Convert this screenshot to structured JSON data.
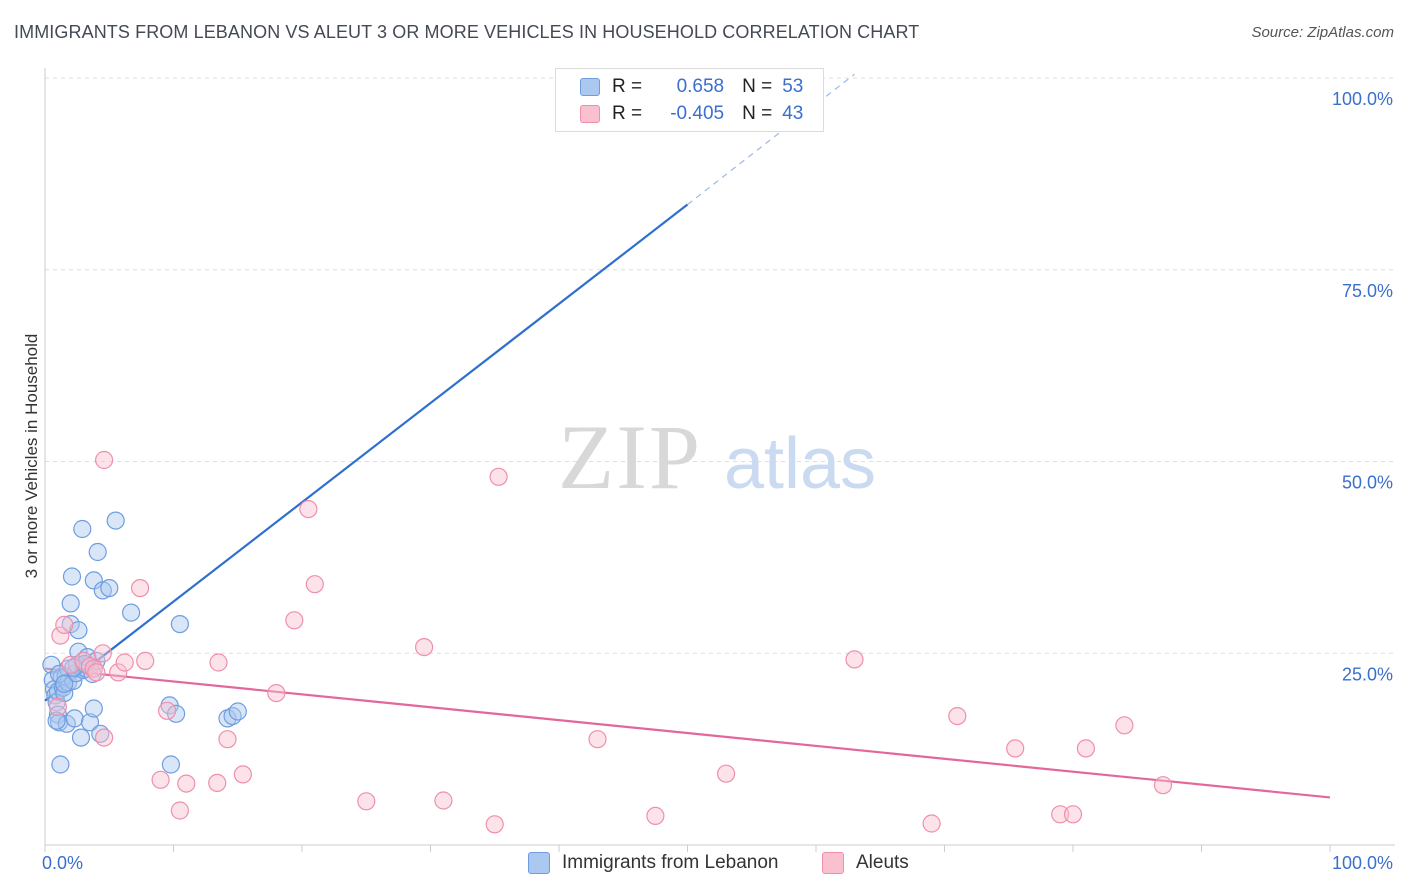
{
  "title": "IMMIGRANTS FROM LEBANON VS ALEUT 3 OR MORE VEHICLES IN HOUSEHOLD CORRELATION CHART",
  "source": "Source: ZipAtlas.com",
  "watermark": {
    "zip": "ZIP",
    "atlas": "atlas"
  },
  "legend": {
    "rows": [
      {
        "r_label": "R =",
        "r_value": "0.658",
        "n_label": "N =",
        "n_value": "53",
        "color": "#aac8f0",
        "edge": "#6f9de0"
      },
      {
        "r_label": "R =",
        "r_value": "-0.405",
        "n_label": "N =",
        "n_value": "43",
        "color": "#f9c0d0",
        "edge": "#ef8fab"
      }
    ]
  },
  "bottom_legend": [
    {
      "label": "Immigrants from Lebanon",
      "color": "#aac8f0",
      "edge": "#6f9de0"
    },
    {
      "label": "Aleuts",
      "color": "#f9c0d0",
      "edge": "#ef8fab"
    }
  ],
  "chart_data": {
    "type": "scatter",
    "xlabel": "",
    "ylabel": "3 or more Vehicles in Household",
    "xlim": [
      0,
      100
    ],
    "ylim": [
      0,
      100
    ],
    "x_tick_labels": [
      "0.0%",
      "100.0%"
    ],
    "y_tick_labels": [
      "25.0%",
      "50.0%",
      "75.0%",
      "100.0%"
    ],
    "y_ticks": [
      25,
      50,
      75,
      100
    ],
    "grid": "horizontal dashed",
    "legend_placement": "top-center",
    "series": [
      {
        "name": "Immigrants from Lebanon",
        "color": "#6f9de0",
        "fill": "#aac8f0",
        "points": [
          [
            0.5,
            23.5
          ],
          [
            0.6,
            21.5
          ],
          [
            0.7,
            20.3
          ],
          [
            0.8,
            19.5
          ],
          [
            0.9,
            18.6
          ],
          [
            1.0,
            17.0
          ],
          [
            1.0,
            20.0
          ],
          [
            1.1,
            16.0
          ],
          [
            1.2,
            10.5
          ],
          [
            1.3,
            21.9
          ],
          [
            1.4,
            20.5
          ],
          [
            1.5,
            19.8
          ],
          [
            1.6,
            22.0
          ],
          [
            1.7,
            15.8
          ],
          [
            1.8,
            21.2
          ],
          [
            1.8,
            23.0
          ],
          [
            2.0,
            28.8
          ],
          [
            2.0,
            31.5
          ],
          [
            2.1,
            35.0
          ],
          [
            2.2,
            21.4
          ],
          [
            2.3,
            16.5
          ],
          [
            2.4,
            22.4
          ],
          [
            2.5,
            23.5
          ],
          [
            2.6,
            25.2
          ],
          [
            2.6,
            28.0
          ],
          [
            2.8,
            14.0
          ],
          [
            2.9,
            41.2
          ],
          [
            3.0,
            22.8
          ],
          [
            3.2,
            23.0
          ],
          [
            3.3,
            24.5
          ],
          [
            3.5,
            16.0
          ],
          [
            3.7,
            22.3
          ],
          [
            3.8,
            17.8
          ],
          [
            3.8,
            34.5
          ],
          [
            4.0,
            24.0
          ],
          [
            4.1,
            38.2
          ],
          [
            4.3,
            14.5
          ],
          [
            4.5,
            33.2
          ],
          [
            5.0,
            33.5
          ],
          [
            5.5,
            42.3
          ],
          [
            6.7,
            30.3
          ],
          [
            9.7,
            18.2
          ],
          [
            9.8,
            10.5
          ],
          [
            10.2,
            17.1
          ],
          [
            10.5,
            28.8
          ],
          [
            14.2,
            16.5
          ],
          [
            14.6,
            16.8
          ],
          [
            15.0,
            17.4
          ],
          [
            0.9,
            16.2
          ],
          [
            1.1,
            22.3
          ],
          [
            1.5,
            21.0
          ],
          [
            2.2,
            23.1
          ],
          [
            3.1,
            23.6
          ]
        ],
        "trend": {
          "x0": 0.0,
          "y0": 18.8,
          "x1": 50.0,
          "y1": 83.5
        },
        "trend_extension": {
          "x0": 50.0,
          "y0": 83.5,
          "x1": 63.0,
          "y1": 100.5
        }
      },
      {
        "name": "Aleuts",
        "color": "#ef8fab",
        "fill": "#f9c0d0",
        "points": [
          [
            1.0,
            18.0
          ],
          [
            1.2,
            27.3
          ],
          [
            1.5,
            28.7
          ],
          [
            2.0,
            23.5
          ],
          [
            3.0,
            24.0
          ],
          [
            3.5,
            23.3
          ],
          [
            3.8,
            23.0
          ],
          [
            4.0,
            22.5
          ],
          [
            4.5,
            25.0
          ],
          [
            4.6,
            14.0
          ],
          [
            4.6,
            50.2
          ],
          [
            5.7,
            22.5
          ],
          [
            6.2,
            23.8
          ],
          [
            7.4,
            33.5
          ],
          [
            7.8,
            24.0
          ],
          [
            9.0,
            8.5
          ],
          [
            9.5,
            17.5
          ],
          [
            10.5,
            4.5
          ],
          [
            11.0,
            8.0
          ],
          [
            13.4,
            8.1
          ],
          [
            13.5,
            23.8
          ],
          [
            14.2,
            13.8
          ],
          [
            15.4,
            9.2
          ],
          [
            18.0,
            19.8
          ],
          [
            19.4,
            29.3
          ],
          [
            20.5,
            43.8
          ],
          [
            21.0,
            34.0
          ],
          [
            25.0,
            5.7
          ],
          [
            29.5,
            25.8
          ],
          [
            31.0,
            5.8
          ],
          [
            35.0,
            2.7
          ],
          [
            35.3,
            48.0
          ],
          [
            43.0,
            13.8
          ],
          [
            47.5,
            3.8
          ],
          [
            53.0,
            9.3
          ],
          [
            63.0,
            24.2
          ],
          [
            69.0,
            2.8
          ],
          [
            71.0,
            16.8
          ],
          [
            75.5,
            12.6
          ],
          [
            79.0,
            4.0
          ],
          [
            80.0,
            4.0
          ],
          [
            81.0,
            12.6
          ],
          [
            84.0,
            15.6
          ]
        ],
        "extra_points": [
          [
            87.0,
            7.8
          ]
        ],
        "trend": {
          "x0": 0.0,
          "y0": 23.0,
          "x1": 100.0,
          "y1": 6.2
        }
      }
    ]
  }
}
